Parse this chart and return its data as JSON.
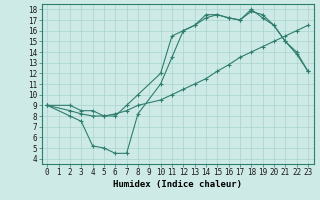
{
  "line1": {
    "x": [
      0,
      2,
      3,
      4,
      5,
      6,
      7,
      8,
      10,
      11,
      12,
      13,
      14,
      15,
      16,
      17,
      18,
      19,
      20,
      21,
      22,
      23
    ],
    "y": [
      9,
      9,
      8.5,
      8.5,
      8,
      8,
      9,
      10,
      12,
      15.5,
      16,
      16.5,
      17.2,
      17.5,
      17.2,
      17,
      18,
      17.2,
      16.5,
      15,
      14,
      12.2
    ],
    "color": "#2e7d6e",
    "marker": "+"
  },
  "line2": {
    "x": [
      0,
      2,
      3,
      4,
      5,
      6,
      7,
      8,
      10,
      11,
      12,
      13,
      14,
      15,
      16,
      17,
      18,
      19,
      20,
      21,
      22,
      23
    ],
    "y": [
      9,
      8,
      7.5,
      5.2,
      5,
      4.5,
      4.5,
      8.2,
      11,
      13.5,
      16,
      16.5,
      17.5,
      17.5,
      17.2,
      17,
      17.8,
      17.5,
      16.5,
      15,
      13.8,
      12.2
    ],
    "color": "#2e7d6e",
    "marker": "+"
  },
  "line3": {
    "x": [
      0,
      2,
      3,
      4,
      5,
      6,
      7,
      8,
      10,
      11,
      12,
      13,
      14,
      15,
      16,
      17,
      18,
      19,
      20,
      21,
      22,
      23
    ],
    "y": [
      9,
      8.5,
      8.2,
      8,
      8,
      8.2,
      8.5,
      9,
      9.5,
      10,
      10.5,
      11,
      11.5,
      12.2,
      12.8,
      13.5,
      14,
      14.5,
      15,
      15.5,
      16,
      16.5
    ],
    "color": "#2e7d6e",
    "marker": "+"
  },
  "background_color": "#ceeae6",
  "grid_color": "#aad4ce",
  "xlabel": "Humidex (Indice chaleur)",
  "xlim": [
    -0.5,
    23.5
  ],
  "ylim": [
    3.5,
    18.5
  ],
  "xticks": [
    0,
    1,
    2,
    3,
    4,
    5,
    6,
    7,
    8,
    9,
    10,
    11,
    12,
    13,
    14,
    15,
    16,
    17,
    18,
    19,
    20,
    21,
    22,
    23
  ],
  "yticks": [
    4,
    5,
    6,
    7,
    8,
    9,
    10,
    11,
    12,
    13,
    14,
    15,
    16,
    17,
    18
  ],
  "fontsize_axis": 5.5,
  "fontsize_label": 6.5
}
